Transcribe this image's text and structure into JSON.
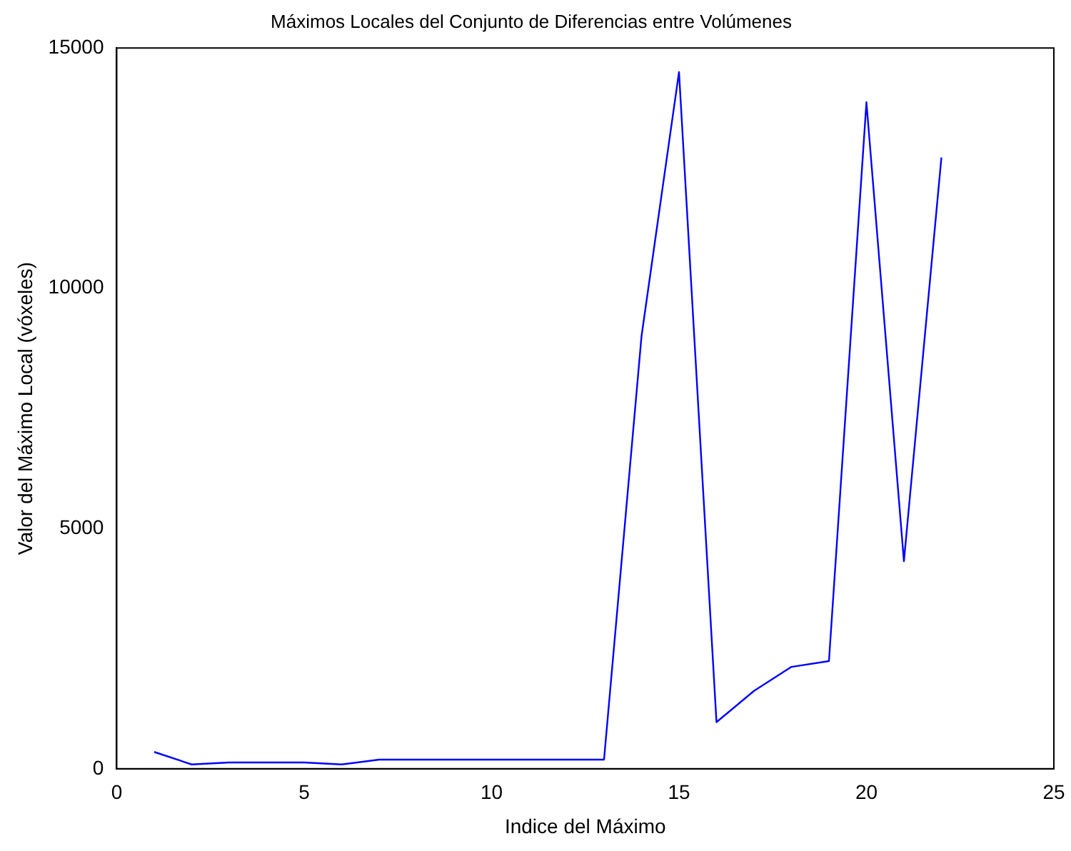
{
  "chart_data": {
    "type": "line",
    "title": "Máximos Locales del Conjunto de Diferencias entre Volúmenes",
    "xlabel": "Indice del Máximo",
    "ylabel": "Valor del Máximo Local (vóxeles)",
    "x": [
      1,
      2,
      3,
      4,
      5,
      6,
      7,
      8,
      9,
      10,
      11,
      12,
      13,
      14,
      15,
      16,
      17,
      18,
      19,
      20,
      21,
      22
    ],
    "series": [
      {
        "color": "#0000ff",
        "values": [
          350,
          90,
          130,
          130,
          130,
          90,
          190,
          190,
          190,
          190,
          190,
          190,
          190,
          9000,
          14500,
          970,
          1620,
          2120,
          2240,
          13870,
          4320,
          12720
        ]
      }
    ],
    "xlim": [
      0,
      25
    ],
    "xticks": [
      0,
      5,
      10,
      15,
      20,
      25
    ],
    "ylim": [
      0,
      15000
    ],
    "yticks": [
      0,
      5000,
      10000,
      15000
    ],
    "grid": false,
    "legend": false,
    "marker": "none",
    "line_style": "solid"
  }
}
